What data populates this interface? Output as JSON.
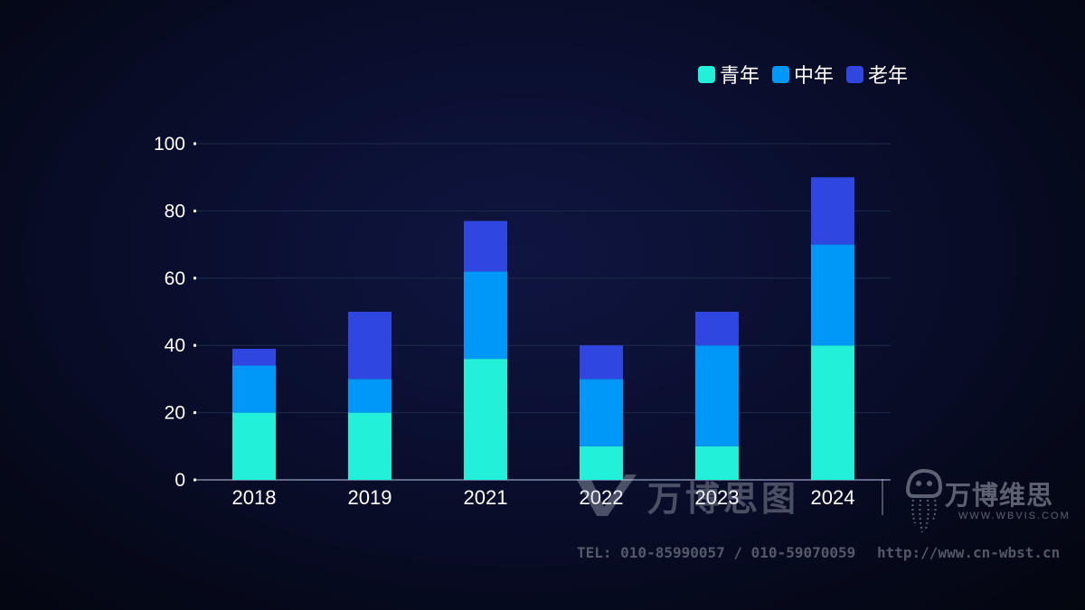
{
  "colors": {
    "youth": "#22f0d8",
    "middle": "#0098f8",
    "elder": "#2f47e0",
    "text": "#ffffff",
    "grid": "#1f2a4a",
    "axis": "#7f89a8"
  },
  "legend": {
    "items": [
      {
        "label": "青年",
        "color": "#22f0d8"
      },
      {
        "label": "中年",
        "color": "#0098f8"
      },
      {
        "label": "老年",
        "color": "#2f47e0"
      }
    ]
  },
  "chart_data": {
    "type": "bar",
    "stacked": true,
    "categories": [
      "2018",
      "2019",
      "2021",
      "2022",
      "2023",
      "2024"
    ],
    "series": [
      {
        "name": "青年",
        "values": [
          20,
          20,
          36,
          10,
          10,
          40
        ]
      },
      {
        "name": "中年",
        "values": [
          14,
          10,
          26,
          20,
          30,
          30
        ]
      },
      {
        "name": "老年",
        "values": [
          5,
          20,
          15,
          10,
          10,
          20
        ]
      }
    ],
    "ylim": [
      0,
      100
    ],
    "yticks": [
      0,
      20,
      40,
      60,
      80,
      100
    ],
    "grid": true,
    "legend_position": "top-right"
  },
  "watermark": {
    "brand_left": "万博思图",
    "brand_right": "万博维思",
    "brand_right_url": "WWW.WBVIS.COM",
    "tel": "TEL: 010-85990057 / 010-59070059",
    "site": "http://www.cn-wbst.cn"
  }
}
